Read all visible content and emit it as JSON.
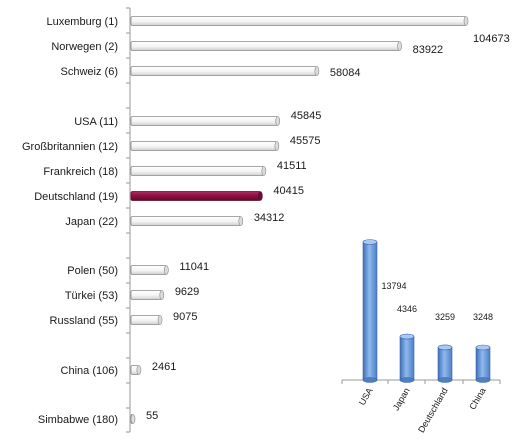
{
  "chart_data": [
    {
      "type": "bar",
      "orientation": "horizontal",
      "title": "",
      "xlabel": "",
      "ylabel": "",
      "grid": false,
      "xlim": [
        0,
        110000
      ],
      "categories": [
        "Luxemburg (1)",
        "Norwegen (2)",
        "Schweiz (6)",
        "USA (11)",
        "Großbritannien (12)",
        "Frankreich (18)",
        "Deutschland (19)",
        "Japan (22)",
        "Polen (50)",
        "Türkei (53)",
        "Russland (55)",
        "China (106)",
        "Simbabwe (180)"
      ],
      "values": [
        104673,
        83922,
        58084,
        45845,
        45575,
        41511,
        40415,
        34312,
        11041,
        9629,
        9075,
        2461,
        55
      ],
      "value_labels": [
        "104673",
        "83922",
        "58084",
        "45845",
        "45575",
        "41511",
        "40415",
        "34312",
        "11041",
        "9629",
        "9075",
        "2461",
        "55"
      ],
      "highlight_category": "Deutschland (19)",
      "colors": {
        "bar": "#ffffff",
        "bar_edge": "#8a8a8a",
        "highlight": "#8b1040"
      }
    },
    {
      "type": "bar",
      "orientation": "vertical",
      "title": "",
      "xlabel": "",
      "ylabel": "",
      "grid": false,
      "ylim": [
        0,
        14500
      ],
      "categories": [
        "USA",
        "Japan",
        "Deutschland",
        "China"
      ],
      "values": [
        13794,
        4346,
        3259,
        3248
      ],
      "value_labels": [
        "13794",
        "4346",
        "3259",
        "3248"
      ],
      "colors": {
        "bar": "#6d9ee0",
        "bar_dark": "#3f6fb5"
      }
    }
  ]
}
